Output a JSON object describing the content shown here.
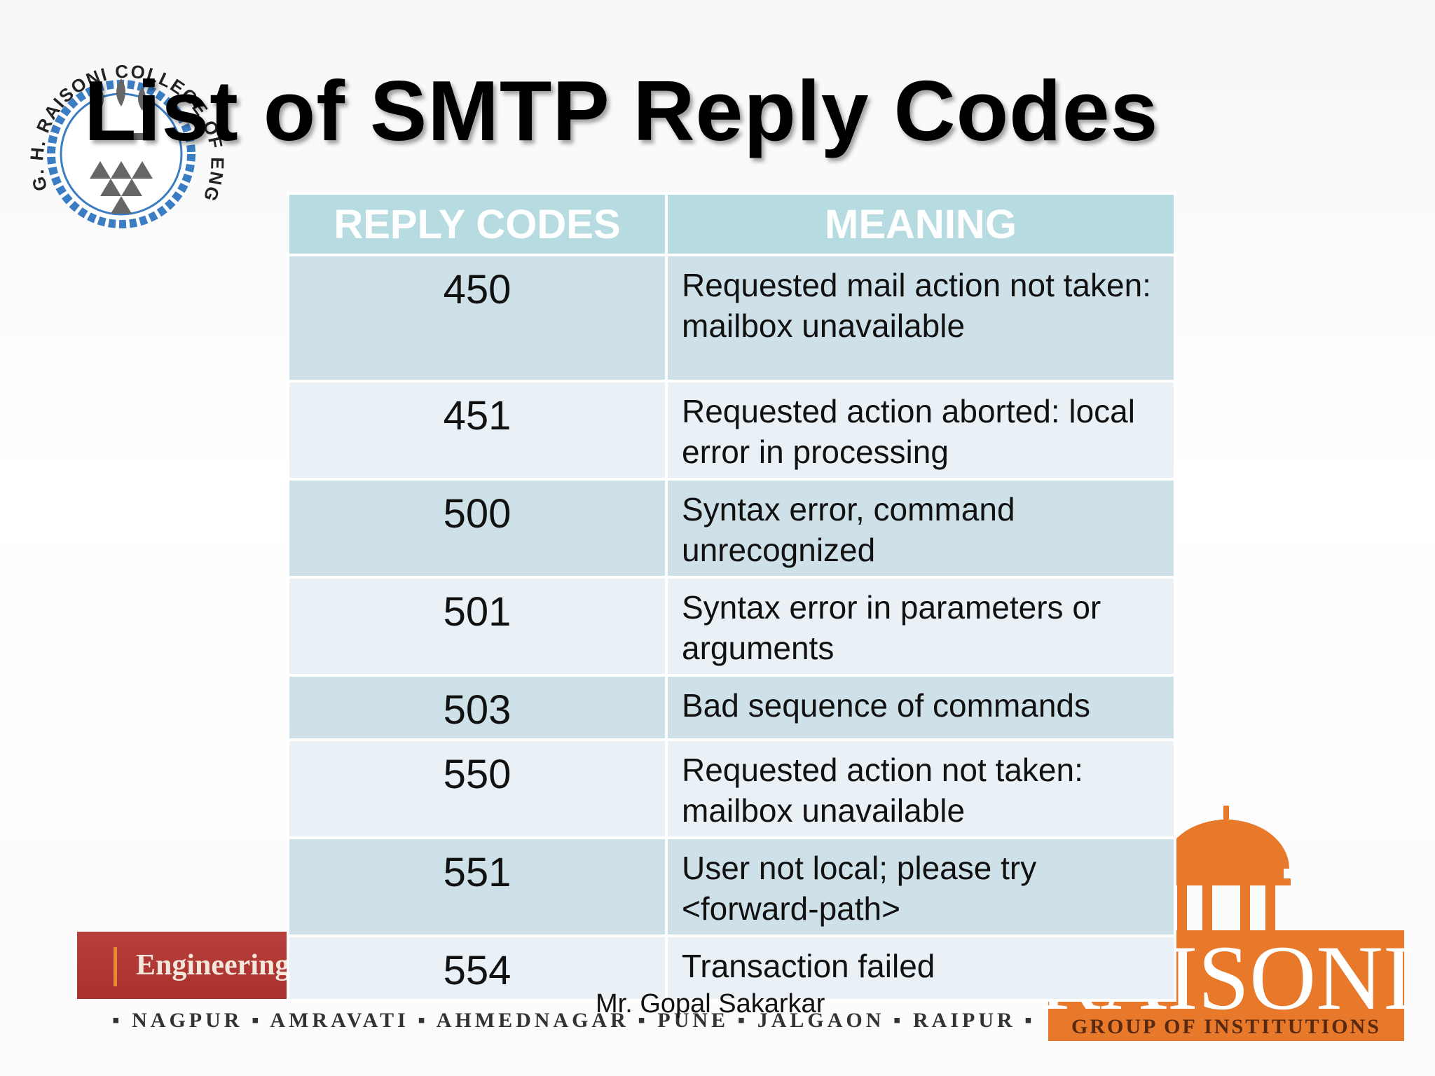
{
  "slide": {
    "title": "List of SMTP Reply Codes",
    "author": "Mr. Gopal Sakarkar"
  },
  "seal": {
    "text": "G. H. RAISONI COLLEGE OF ENGINEERING",
    "colors": {
      "ring": "#3a7dc2",
      "text": "#222222",
      "emblem": "#555555"
    }
  },
  "table": {
    "headers": [
      "REPLY CODES",
      "MEANING"
    ],
    "rows": [
      {
        "code": "450",
        "meaning": "Requested mail action not taken: mailbox unavailable"
      },
      {
        "code": "451",
        "meaning": "Requested action aborted: local error in processing"
      },
      {
        "code": "500",
        "meaning": "Syntax error, command unrecognized"
      },
      {
        "code": "501",
        "meaning": "Syntax error in parameters or arguments"
      },
      {
        "code": "503",
        "meaning": "Bad sequence of commands"
      },
      {
        "code": "550",
        "meaning": "Requested action not taken: mailbox unavailable"
      },
      {
        "code": "551",
        "meaning": "User not local; please try <forward-path>"
      },
      {
        "code": "554",
        "meaning": "Transaction failed"
      }
    ],
    "colors": {
      "header": "#b6dce2",
      "row_dark": "#cfe1e8",
      "row_light": "#e9f1f6"
    }
  },
  "footer": {
    "band_label": "Engineering",
    "cities": "▪ NAGPUR ▪ AMRAVATI ▪ AHMEDNAGAR ▪ PUNE ▪ JALGAON ▪ RAIPUR ▪",
    "brand": "RAISONI",
    "brand_sub": "GROUP OF INSTITUTIONS",
    "colors": {
      "band": "#a8312e",
      "brand": "#e8782a"
    }
  }
}
